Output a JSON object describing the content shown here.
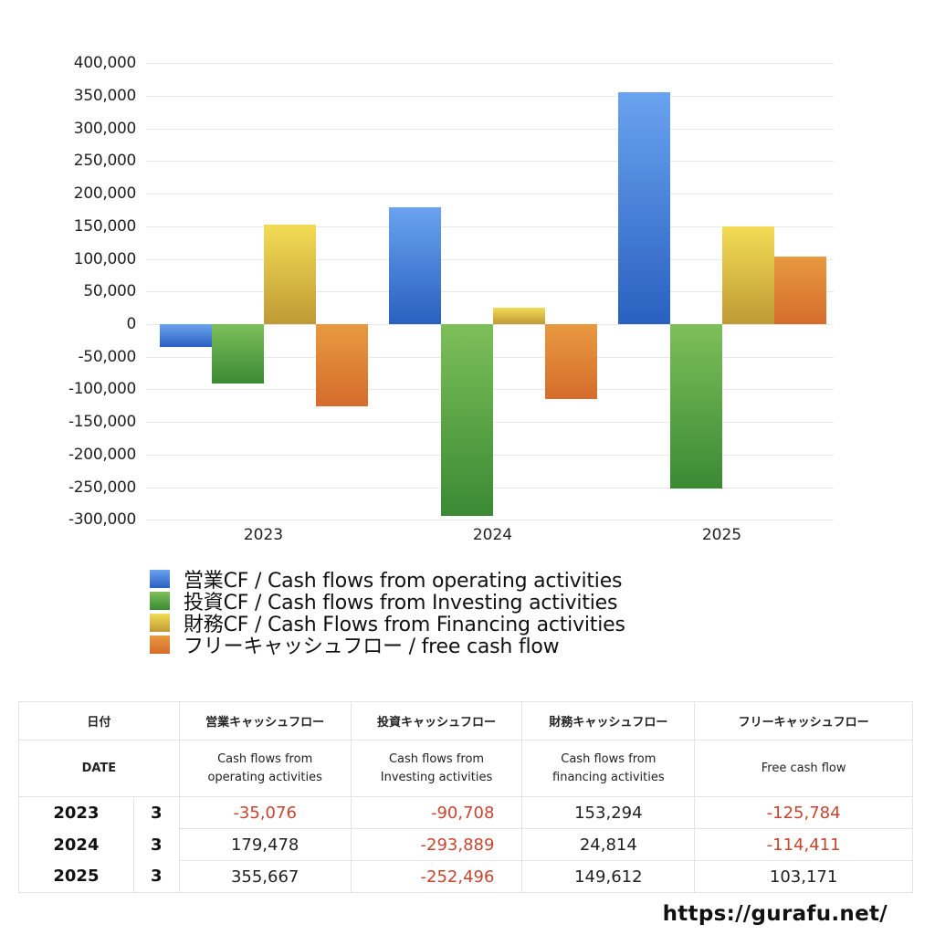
{
  "chart_data": {
    "type": "bar",
    "title": "",
    "xlabel": "",
    "ylabel": "",
    "categories": [
      "2023",
      "2024",
      "2025"
    ],
    "ylim": [
      -300000,
      400000
    ],
    "yticks": [
      400000,
      350000,
      300000,
      250000,
      200000,
      150000,
      100000,
      50000,
      0,
      -50000,
      -100000,
      -150000,
      -200000,
      -250000,
      -300000
    ],
    "ytick_labels": [
      "400,000",
      "350,000",
      "300,000",
      "250,000",
      "200,000",
      "150,000",
      "100,000",
      "50,000",
      "0",
      "-50,000",
      "-100,000",
      "-150,000",
      "-200,000",
      "-250,000",
      "-300,000"
    ],
    "grid": true,
    "legend_position": "bottom",
    "series": [
      {
        "name": "営業CF / Cash flows from operating activities",
        "values": [
          -35076,
          179478,
          355667
        ],
        "color_top": "#6aa3ef",
        "color_bottom": "#2a60c0"
      },
      {
        "name": "投資CF / Cash flows from Investing activities",
        "values": [
          -90708,
          -293889,
          -252496
        ],
        "color_top": "#7dbf5a",
        "color_bottom": "#3a8a34"
      },
      {
        "name": "財務CF / Cash Flows from Financing activities",
        "values": [
          153294,
          24814,
          149612
        ],
        "color_top": "#f3dc55",
        "color_bottom": "#bf9a35"
      },
      {
        "name": "フリーキャッシュフロー / free cash flow",
        "values": [
          -125784,
          -114411,
          103171
        ],
        "color_top": "#e89a40",
        "color_bottom": "#d56c2c"
      }
    ]
  },
  "legend": [
    {
      "label": "営業CF / Cash flows from operating activities"
    },
    {
      "label": "投資CF / Cash flows from Investing activities"
    },
    {
      "label": "財務CF / Cash Flows from Financing activities"
    },
    {
      "label": "フリーキャッシュフロー / free cash flow"
    }
  ],
  "table": {
    "header_jp": [
      "日付",
      "",
      "営業キャッシュフロー",
      "投資キャッシュフロー",
      "財務キャッシュフロー",
      "フリーキャッシュフロー"
    ],
    "header_en": [
      "DATE",
      "",
      "Cash flows from\noperating activities",
      "Cash flows from\nInvesting activities",
      "Cash flows from\nfinancing activities",
      "Free cash flow"
    ],
    "rows": [
      {
        "year": "2023",
        "month": "3",
        "operating": "-35,076",
        "investing": "-90,708",
        "financing": "153,294",
        "free": "-125,784"
      },
      {
        "year": "2024",
        "month": "3",
        "operating": "179,478",
        "investing": "-293,889",
        "financing": "24,814",
        "free": "-114,411"
      },
      {
        "year": "2025",
        "month": "3",
        "operating": "355,667",
        "investing": "-252,496",
        "financing": "149,612",
        "free": "103,171"
      }
    ],
    "negative_color": "#c8452f"
  },
  "footer": {
    "url": "https://gurafu.net/"
  }
}
